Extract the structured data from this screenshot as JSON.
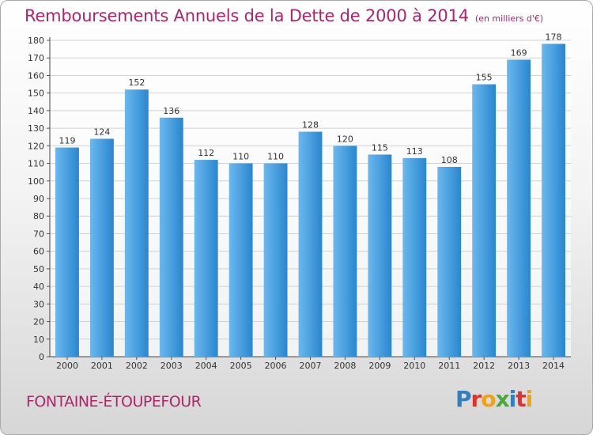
{
  "title": "Remboursements Annuels de la Dette de 2000 à 2014",
  "unit_label": "(en milliers d'€)",
  "commune": "FONTAINE-ÉTOUPEFOUR",
  "logo": {
    "text": "Proxiti",
    "letter_colors": [
      "#2f7fc1",
      "#e4312b",
      "#f3a20f",
      "#4ba83a",
      "#2f7fc1",
      "#e4312b",
      "#f3a20f"
    ]
  },
  "colors": {
    "bar_light": "#6ab8ee",
    "bar_dark": "#2a86cf",
    "text": "#333333",
    "title": "#b0246a"
  },
  "chart_data": {
    "type": "bar",
    "categories": [
      "2000",
      "2001",
      "2002",
      "2003",
      "2004",
      "2005",
      "2006",
      "2007",
      "2008",
      "2009",
      "2010",
      "2011",
      "2012",
      "2013",
      "2014"
    ],
    "values": [
      119,
      124,
      152,
      136,
      112,
      110,
      110,
      128,
      120,
      115,
      113,
      108,
      155,
      169,
      178
    ],
    "ylim": [
      0,
      180
    ],
    "yticks": [
      0,
      10,
      20,
      30,
      40,
      50,
      60,
      70,
      80,
      90,
      100,
      110,
      120,
      130,
      140,
      150,
      160,
      170,
      180
    ],
    "grid": true,
    "data_labels": true,
    "xlabel": "",
    "ylabel": ""
  }
}
